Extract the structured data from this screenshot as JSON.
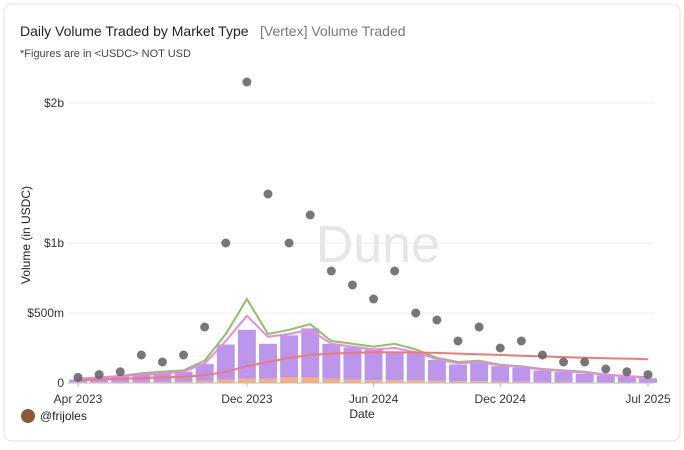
{
  "chart_data": {
    "type": "bar",
    "title": "Daily Volume Traded by Market Type",
    "subtitle": "[Vertex] Volume Traded",
    "note": "*Figures are in <USDC> NOT USD",
    "y_label": "Volume (in USDC)",
    "x_label": "Date",
    "watermark": "Dune",
    "author": "@frijoles",
    "grid": true,
    "x": [
      "2023-04",
      "2023-05",
      "2023-06",
      "2023-07",
      "2023-08",
      "2023-09",
      "2023-10",
      "2023-11",
      "2023-12",
      "2024-01",
      "2024-02",
      "2024-03",
      "2024-04",
      "2024-05",
      "2024-06",
      "2024-07",
      "2024-08",
      "2024-09",
      "2024-10",
      "2024-11",
      "2024-12",
      "2025-01",
      "2025-02",
      "2025-03",
      "2025-04",
      "2025-05",
      "2025-06",
      "2025-07"
    ],
    "xlim": [
      "2023-04",
      "2025-07"
    ],
    "xticks": [
      {
        "value": "2023-04",
        "label": "Apr 2023"
      },
      {
        "value": "2023-12",
        "label": "Dec 2023"
      },
      {
        "value": "2024-06",
        "label": "Jun 2024"
      },
      {
        "value": "2024-12",
        "label": "Dec 2024"
      },
      {
        "value": "2025-07",
        "label": "Jul 2025"
      }
    ],
    "ylim": [
      0,
      2200000000
    ],
    "yticks": [
      0,
      {
        "value": 500000000,
        "label": "$500m"
      },
      {
        "value": 1000000000,
        "label": "$1b"
      },
      {
        "value": 2000000000,
        "label": "$2b"
      }
    ],
    "series": [
      {
        "type": "bar",
        "color": "#f5a86a",
        "values": [
          5000000,
          5000000,
          6000000,
          8000000,
          8000000,
          10000000,
          15000000,
          25000000,
          30000000,
          30000000,
          40000000,
          40000000,
          30000000,
          25000000,
          20000000,
          20000000,
          20000000,
          15000000,
          12000000,
          12000000,
          10000000,
          10000000,
          8000000,
          8000000,
          6000000,
          5000000,
          5000000,
          4000000
        ]
      },
      {
        "type": "bar",
        "color": "#b58be8",
        "values": [
          20000000,
          30000000,
          40000000,
          50000000,
          60000000,
          70000000,
          120000000,
          250000000,
          350000000,
          250000000,
          300000000,
          350000000,
          250000000,
          230000000,
          220000000,
          200000000,
          200000000,
          150000000,
          120000000,
          130000000,
          110000000,
          100000000,
          80000000,
          70000000,
          60000000,
          50000000,
          40000000,
          30000000
        ]
      },
      {
        "type": "scatter",
        "color": "#5f5f5f",
        "values": [
          40000000,
          60000000,
          80000000,
          200000000,
          150000000,
          200000000,
          400000000,
          1000000000,
          2150000000,
          1350000000,
          1000000000,
          1200000000,
          800000000,
          700000000,
          600000000,
          800000000,
          500000000,
          450000000,
          300000000,
          400000000,
          250000000,
          300000000,
          200000000,
          150000000,
          150000000,
          100000000,
          80000000,
          60000000
        ]
      },
      {
        "type": "line",
        "color": "#8fbf6a",
        "values": [
          30000000,
          40000000,
          50000000,
          70000000,
          80000000,
          90000000,
          160000000,
          350000000,
          600000000,
          350000000,
          380000000,
          420000000,
          300000000,
          280000000,
          260000000,
          280000000,
          240000000,
          180000000,
          150000000,
          160000000,
          130000000,
          120000000,
          100000000,
          90000000,
          80000000,
          60000000,
          50000000,
          40000000
        ]
      },
      {
        "type": "line",
        "color": "#e58be0",
        "values": [
          28000000,
          38000000,
          48000000,
          60000000,
          70000000,
          80000000,
          140000000,
          300000000,
          480000000,
          330000000,
          350000000,
          380000000,
          280000000,
          260000000,
          240000000,
          250000000,
          220000000,
          170000000,
          140000000,
          150000000,
          125000000,
          115000000,
          95000000,
          85000000,
          75000000,
          58000000,
          48000000,
          38000000
        ]
      },
      {
        "type": "line",
        "color": "#f07878",
        "values": [
          20000000,
          25000000,
          30000000,
          35000000,
          40000000,
          45000000,
          55000000,
          80000000,
          120000000,
          150000000,
          180000000,
          200000000,
          210000000,
          215000000,
          220000000,
          220000000,
          218000000,
          215000000,
          210000000,
          205000000,
          200000000,
          195000000,
          190000000,
          185000000,
          180000000,
          177000000,
          174000000,
          170000000
        ]
      }
    ]
  }
}
